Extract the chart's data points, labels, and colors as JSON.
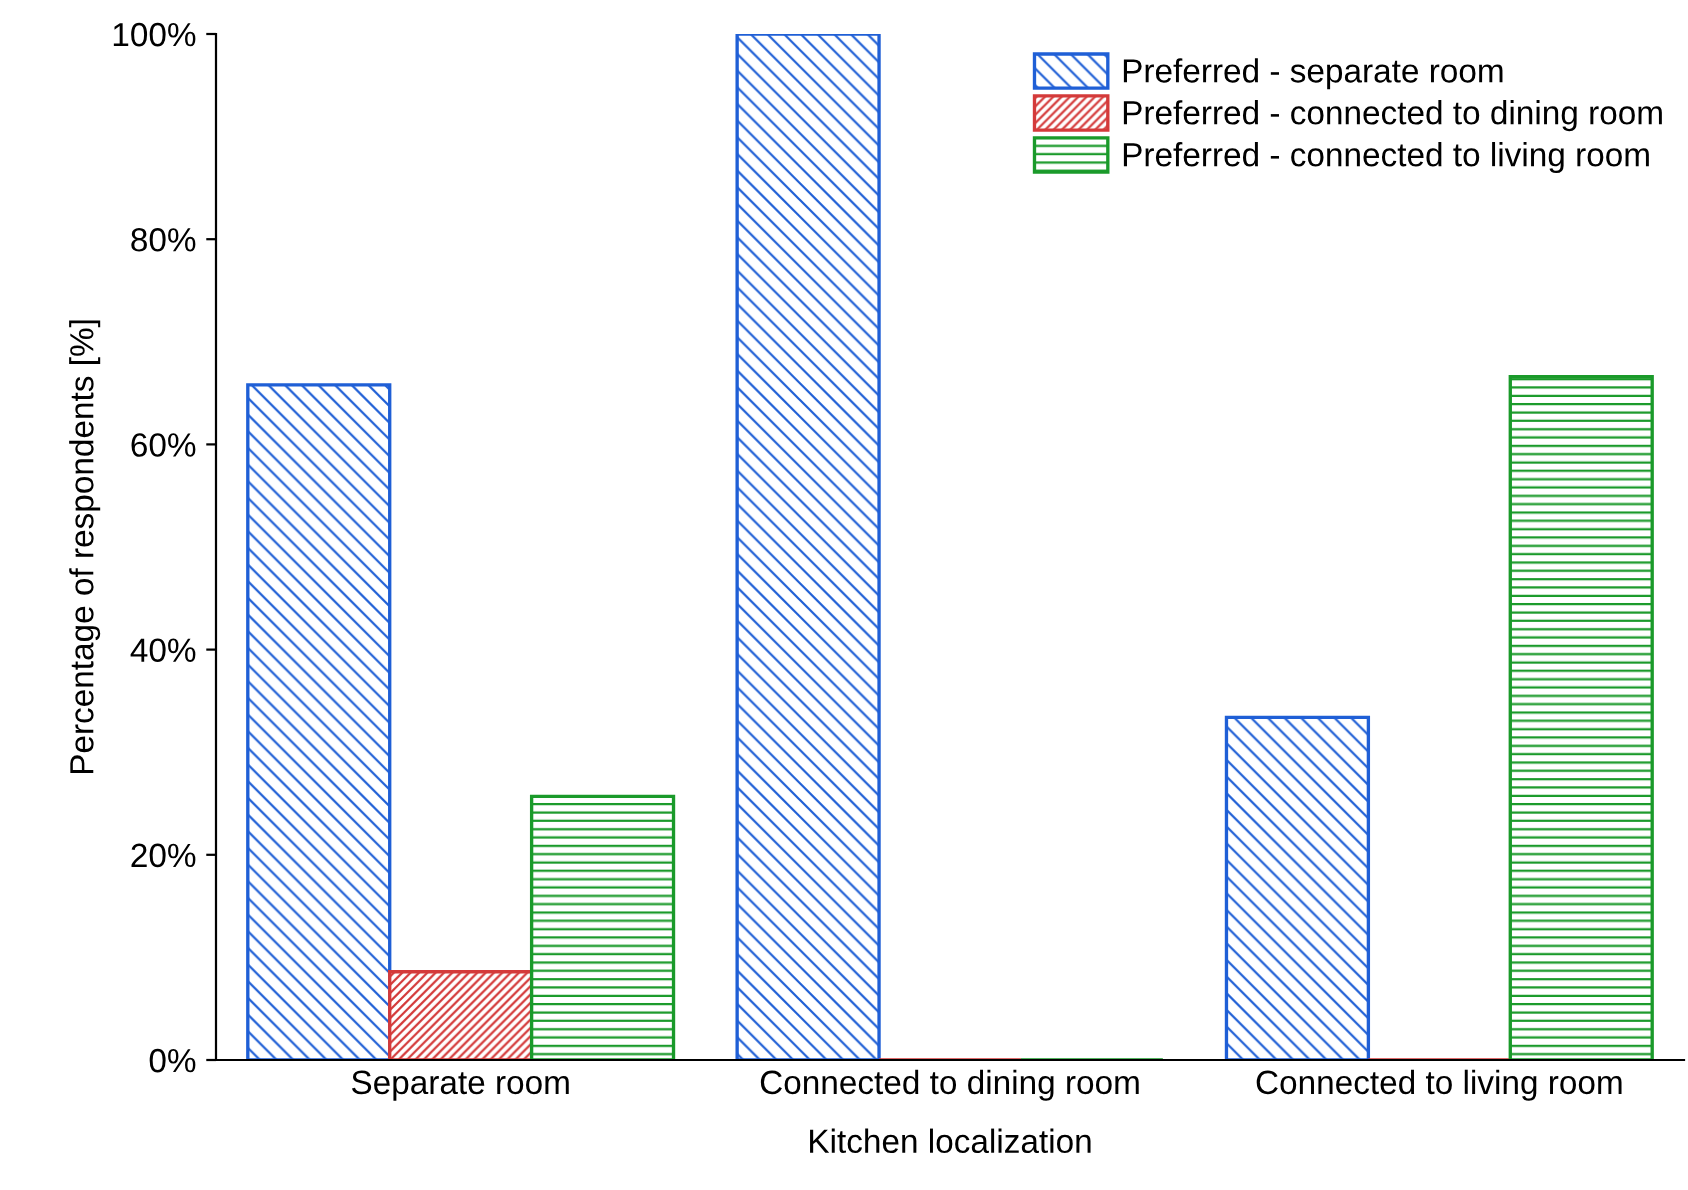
{
  "chart_data": {
    "type": "bar",
    "xlabel": "Kitchen localization",
    "ylabel": "Percentage of respondents [%]",
    "categories": [
      "Separate room",
      "Connected to dining room",
      "Connected to living room"
    ],
    "series": [
      {
        "name": "Preferred - separate room",
        "color": "#1f5fd6",
        "values": [
          65.8,
          100,
          33.4
        ]
      },
      {
        "name": "Preferred - connected to dining room",
        "color": "#d43a3a",
        "values": [
          8.6,
          0,
          0
        ]
      },
      {
        "name": "Preferred - connected to living room",
        "color": "#1a9a2a",
        "values": [
          25.7,
          0,
          66.6
        ]
      }
    ],
    "ylim": [
      0,
      100
    ],
    "yticks": [
      {
        "value": 0,
        "label": "0%"
      },
      {
        "value": 20,
        "label": "20%"
      },
      {
        "value": 40,
        "label": "40%"
      },
      {
        "value": 60,
        "label": "60%"
      },
      {
        "value": 80,
        "label": "80%"
      },
      {
        "value": 100,
        "label": "100%"
      }
    ],
    "grid": false,
    "legend": "top right"
  }
}
